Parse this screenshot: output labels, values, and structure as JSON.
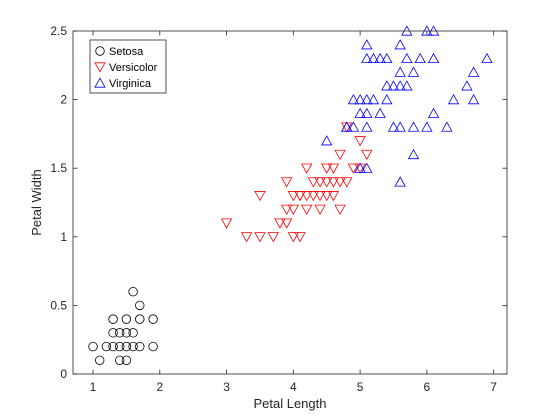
{
  "chart_data": {
    "type": "scatter",
    "title": "",
    "xlabel": "Petal Length",
    "ylabel": "Petal Width",
    "xlim": [
      0.7,
      7.2
    ],
    "ylim": [
      0,
      2.5
    ],
    "xticks": [
      1,
      2,
      3,
      4,
      5,
      6,
      7
    ],
    "yticks": [
      0,
      0.5,
      1,
      1.5,
      2,
      2.5
    ],
    "xtick_labels": [
      "1",
      "2",
      "3",
      "4",
      "5",
      "6",
      "7"
    ],
    "ytick_labels": [
      "0",
      "0.5",
      "1",
      "1.5",
      "2",
      "2.5"
    ],
    "grid": false,
    "legend_position": "top-left",
    "series": [
      {
        "name": "Setosa",
        "marker": "circle",
        "color": "#000000",
        "points": [
          [
            1.6,
            0.6
          ],
          [
            1.7,
            0.5
          ],
          [
            1.3,
            0.4
          ],
          [
            1.5,
            0.4
          ],
          [
            1.7,
            0.4
          ],
          [
            1.9,
            0.4
          ],
          [
            1.5,
            0.3
          ],
          [
            1.3,
            0.3
          ],
          [
            1.4,
            0.3
          ],
          [
            1.6,
            0.3
          ],
          [
            1.4,
            0.2
          ],
          [
            1.6,
            0.2
          ],
          [
            1.2,
            0.2
          ],
          [
            1.5,
            0.2
          ],
          [
            1.0,
            0.2
          ],
          [
            1.7,
            0.2
          ],
          [
            1.3,
            0.2
          ],
          [
            1.9,
            0.2
          ],
          [
            1.1,
            0.1
          ],
          [
            1.4,
            0.1
          ],
          [
            1.5,
            0.1
          ]
        ]
      },
      {
        "name": "Versicolor",
        "marker": "triangle-down",
        "color": "#ff0000",
        "points": [
          [
            3.0,
            1.1
          ],
          [
            3.3,
            1.0
          ],
          [
            3.5,
            1.0
          ],
          [
            3.7,
            1.0
          ],
          [
            3.5,
            1.3
          ],
          [
            3.8,
            1.1
          ],
          [
            3.9,
            1.1
          ],
          [
            3.9,
            1.4
          ],
          [
            3.9,
            1.2
          ],
          [
            4.0,
            1.3
          ],
          [
            4.0,
            1.0
          ],
          [
            4.0,
            1.2
          ],
          [
            4.1,
            1.0
          ],
          [
            4.1,
            1.3
          ],
          [
            4.2,
            1.3
          ],
          [
            4.2,
            1.2
          ],
          [
            4.3,
            1.3
          ],
          [
            4.4,
            1.4
          ],
          [
            4.2,
            1.5
          ],
          [
            4.4,
            1.3
          ],
          [
            4.4,
            1.2
          ],
          [
            4.5,
            1.3
          ],
          [
            4.5,
            1.5
          ],
          [
            4.5,
            1.4
          ],
          [
            4.6,
            1.3
          ],
          [
            4.6,
            1.4
          ],
          [
            4.6,
            1.5
          ],
          [
            4.7,
            1.6
          ],
          [
            4.7,
            1.4
          ],
          [
            4.7,
            1.2
          ],
          [
            4.8,
            1.8
          ],
          [
            4.8,
            1.4
          ],
          [
            4.9,
            1.5
          ],
          [
            5.0,
            1.7
          ],
          [
            5.1,
            1.6
          ],
          [
            5.0,
            1.5
          ],
          [
            4.1,
            1.3
          ],
          [
            4.3,
            1.4
          ]
        ]
      },
      {
        "name": "Virginica",
        "marker": "triangle-up",
        "color": "#0000ff",
        "points": [
          [
            4.5,
            1.7
          ],
          [
            4.8,
            1.8
          ],
          [
            4.9,
            1.8
          ],
          [
            5.0,
            1.5
          ],
          [
            5.1,
            1.5
          ],
          [
            5.6,
            1.4
          ],
          [
            5.0,
            2.0
          ],
          [
            5.1,
            2.0
          ],
          [
            5.1,
            1.9
          ],
          [
            5.2,
            2.0
          ],
          [
            4.9,
            2.0
          ],
          [
            5.0,
            1.9
          ],
          [
            5.1,
            2.4
          ],
          [
            5.2,
            2.3
          ],
          [
            5.3,
            2.3
          ],
          [
            5.4,
            2.3
          ],
          [
            5.1,
            2.3
          ],
          [
            5.4,
            2.1
          ],
          [
            5.5,
            2.1
          ],
          [
            5.6,
            2.1
          ],
          [
            5.7,
            2.1
          ],
          [
            5.6,
            2.2
          ],
          [
            5.6,
            2.4
          ],
          [
            5.7,
            2.5
          ],
          [
            5.8,
            2.2
          ],
          [
            5.7,
            2.3
          ],
          [
            5.9,
            2.3
          ],
          [
            6.0,
            2.5
          ],
          [
            6.1,
            2.5
          ],
          [
            6.1,
            2.3
          ],
          [
            6.6,
            2.1
          ],
          [
            6.7,
            2.2
          ],
          [
            6.9,
            2.3
          ],
          [
            6.7,
            2.0
          ],
          [
            6.4,
            2.0
          ],
          [
            6.1,
            1.9
          ],
          [
            5.3,
            1.9
          ],
          [
            5.1,
            1.8
          ],
          [
            5.5,
            1.8
          ],
          [
            5.6,
            1.8
          ],
          [
            5.8,
            1.8
          ],
          [
            6.0,
            1.8
          ],
          [
            6.3,
            1.8
          ],
          [
            5.8,
            1.6
          ],
          [
            4.8,
            1.8
          ],
          [
            5.4,
            2.0
          ]
        ]
      }
    ]
  }
}
